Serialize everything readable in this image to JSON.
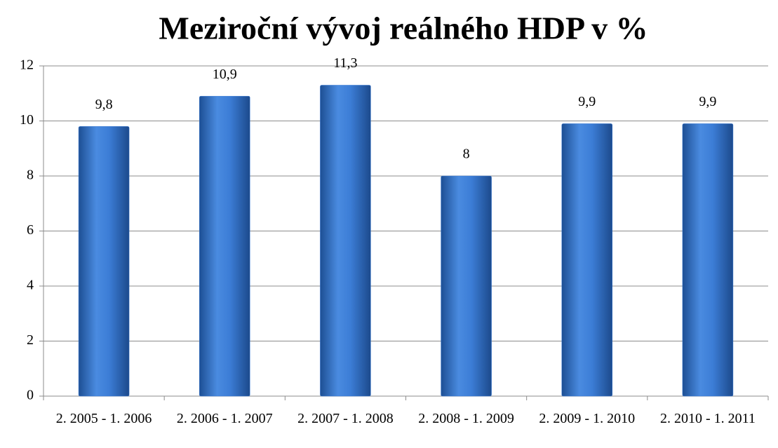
{
  "chart_data": {
    "type": "bar",
    "title": "Meziroční vývoj reálného HDP v %",
    "categories": [
      "2. 2005 - 1. 2006",
      "2. 2006 - 1. 2007",
      "2. 2007 - 1. 2008",
      "2. 2008 - 1. 2009",
      "2. 2009 - 1. 2010",
      "2. 2010 - 1. 2011"
    ],
    "values": [
      9.8,
      10.9,
      11.3,
      8,
      9.9,
      9.9
    ],
    "value_labels": [
      "9,8",
      "10,9",
      "11,3",
      "8",
      "9,9",
      "9,9"
    ],
    "color": "#3a7bd5",
    "ylim": [
      0,
      12
    ],
    "yticks": [
      0,
      2,
      4,
      6,
      8,
      10,
      12
    ],
    "grid": true
  }
}
